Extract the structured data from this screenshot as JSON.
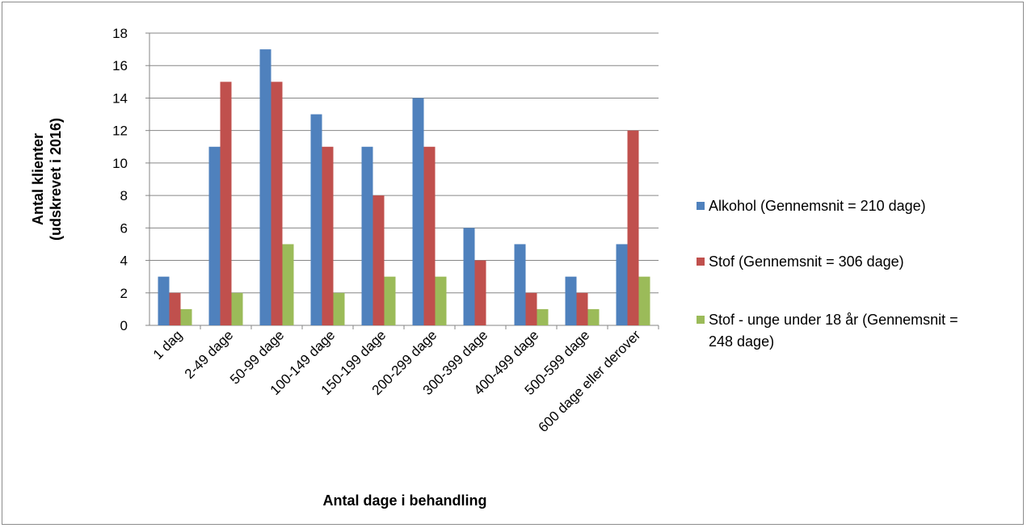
{
  "chart_data": {
    "type": "bar",
    "categories": [
      "1 dag",
      "2-49 dage",
      "50-99 dage",
      "100-149 dage",
      "150-199 dage",
      "200-299 dage",
      "300-399 dage",
      "400-499 dage",
      "500-599 dage",
      "600 dage eller derover"
    ],
    "series": [
      {
        "name": "Alkohol (Gennemsnit = 210 dage)",
        "color": "#4f81bd",
        "values": [
          3,
          11,
          17,
          13,
          11,
          14,
          6,
          5,
          3,
          5
        ]
      },
      {
        "name": "Stof (Gennemsnit = 306 dage)",
        "color": "#c0504d",
        "values": [
          2,
          15,
          15,
          11,
          8,
          11,
          4,
          2,
          2,
          12
        ]
      },
      {
        "name": "Stof - unge under 18 år (Gennemsnit = 248 dage)",
        "color": "#9bbb59",
        "values": [
          1,
          2,
          5,
          2,
          3,
          3,
          0,
          1,
          1,
          3
        ]
      }
    ],
    "legend_lines": [
      [
        "Alkohol (Gennemsnit = 210 dage)"
      ],
      [
        "Stof (Gennemsnit = 306 dage)"
      ],
      [
        "Stof - unge under 18 år (Gennemsnit =",
        "248 dage)"
      ]
    ],
    "ylabel_lines": [
      "Antal klienter",
      "(udskrevet i 2016)"
    ],
    "xlabel": "Antal dage i behandling",
    "ylim": [
      0,
      18
    ],
    "yticks": [
      0,
      2,
      4,
      6,
      8,
      10,
      12,
      14,
      16,
      18
    ],
    "grid": true,
    "legend_position": "right"
  }
}
